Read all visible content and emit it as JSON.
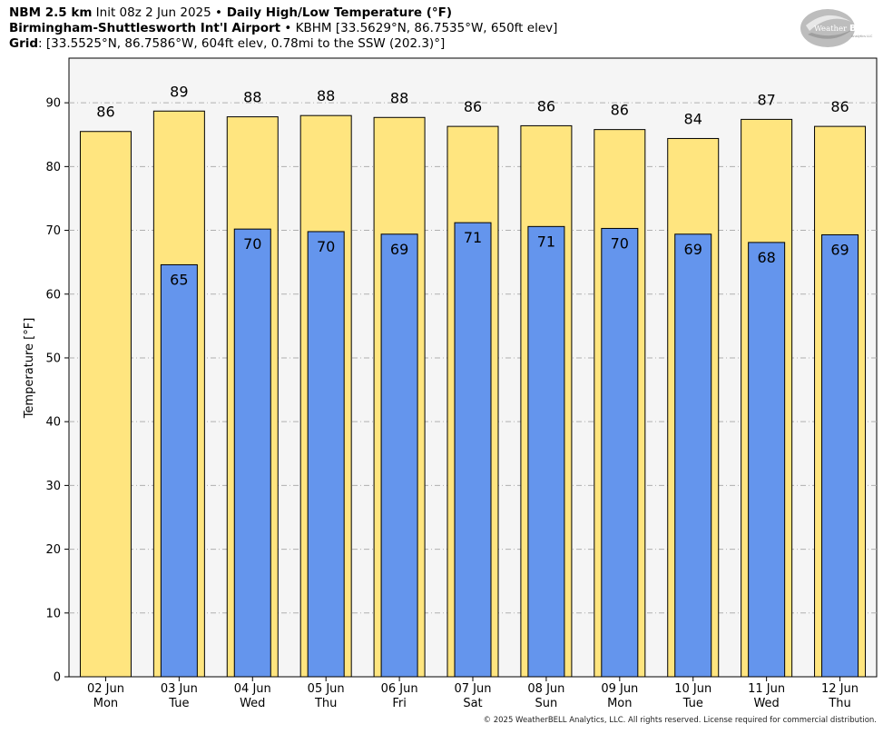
{
  "header": {
    "line1_bold_a": "NBM 2.5 km",
    "line1_text_a": " Init 08z 2 Jun 2025 ",
    "line1_sep": "•",
    "line1_bold_b": " Daily High/Low Temperature (°F)",
    "line2_bold": "Birmingham-Shuttlesworth Int'l Airport",
    "line2_sep": " • ",
    "line2_text": "KBHM [33.5629°N, 86.7535°W, 650ft elev]",
    "line3_bold": "Grid",
    "line3_text": ": [33.5525°N, 86.7586°W, 604ft elev, 0.78mi to the SSW (202.3)°]"
  },
  "logo": {
    "text_a": "Weather",
    "text_b": "BELL",
    "sub": "Analytics LLC"
  },
  "copyright": "© 2025 WeatherBELL Analytics, LLC. All rights reserved. License required for commercial distribution.",
  "chart_data": {
    "type": "bar",
    "ylabel": "Temperature [°F]",
    "ylim": [
      0,
      97
    ],
    "yticks": [
      0,
      10,
      20,
      30,
      40,
      50,
      60,
      70,
      80,
      90
    ],
    "grid": true,
    "categories": [
      [
        "02 Jun",
        "Mon"
      ],
      [
        "03 Jun",
        "Tue"
      ],
      [
        "04 Jun",
        "Wed"
      ],
      [
        "05 Jun",
        "Thu"
      ],
      [
        "06 Jun",
        "Fri"
      ],
      [
        "07 Jun",
        "Sat"
      ],
      [
        "08 Jun",
        "Sun"
      ],
      [
        "09 Jun",
        "Mon"
      ],
      [
        "10 Jun",
        "Tue"
      ],
      [
        "11 Jun",
        "Wed"
      ],
      [
        "12 Jun",
        "Thu"
      ]
    ],
    "series": [
      {
        "values": [
          85.5,
          88.7,
          87.8,
          88.0,
          87.7,
          86.3,
          86.4,
          85.8,
          84.4,
          87.4,
          86.3
        ],
        "labels": [
          "86",
          "89",
          "88",
          "88",
          "88",
          "86",
          "86",
          "86",
          "84",
          "87",
          "86"
        ],
        "color": "#ffe57f"
      },
      {
        "values": [
          null,
          64.6,
          70.2,
          69.8,
          69.4,
          71.2,
          70.6,
          70.3,
          69.4,
          68.1,
          69.3
        ],
        "labels": [
          "",
          "65",
          "70",
          "70",
          "69",
          "71",
          "71",
          "70",
          "69",
          "68",
          "69"
        ],
        "color": "#6495ed"
      }
    ],
    "plot_background": "#f5f5f5"
  }
}
